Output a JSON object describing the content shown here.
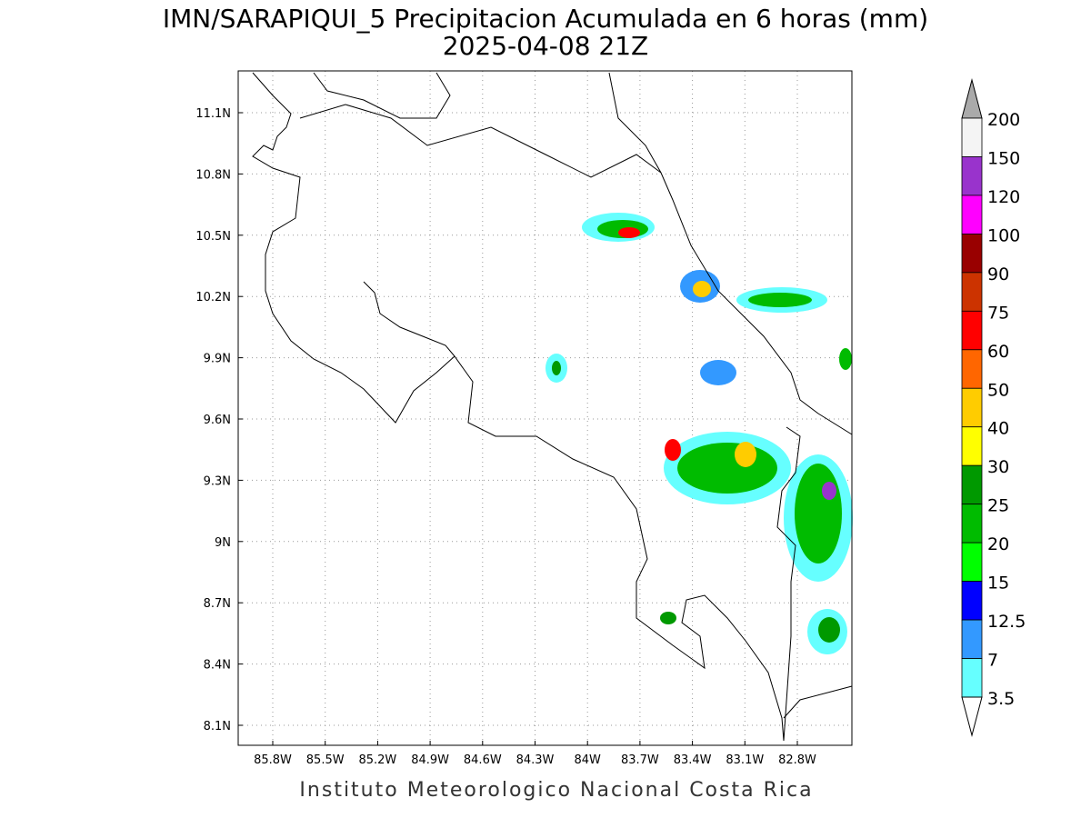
{
  "header": {
    "title": "IMN/SARAPIQUI_5 Precipitacion Acumulada en 6 horas (mm)",
    "subtitle": "2025-04-08 21Z"
  },
  "map": {
    "lat_ticks": [
      "11.1N",
      "10.8N",
      "10.5N",
      "10.2N",
      "9.9N",
      "9.6N",
      "9.3N",
      "9N",
      "8.7N",
      "8.4N",
      "8.1N"
    ],
    "lon_ticks": [
      "85.8W",
      "85.5W",
      "85.2W",
      "84.9W",
      "84.6W",
      "84.3W",
      "84W",
      "83.7W",
      "83.4W",
      "83.1W",
      "82.8W"
    ]
  },
  "colorbar": {
    "labels": [
      "200",
      "150",
      "120",
      "100",
      "90",
      "75",
      "60",
      "50",
      "40",
      "30",
      "25",
      "20",
      "15",
      "12.5",
      "7",
      "3.5"
    ],
    "colors": [
      "#f4f4f4",
      "#9933cc",
      "#ff00ff",
      "#990000",
      "#cc3300",
      "#ff0000",
      "#ff6600",
      "#ffcc00",
      "#ffff00",
      "#009900",
      "#00bb00",
      "#00ff00",
      "#0000ff",
      "#3399ff",
      "#66ffff"
    ],
    "over_color": "#aaaaaa",
    "under_color": "#ffffff"
  },
  "footer": "Instituto Meteorologico Nacional Costa Rica"
}
